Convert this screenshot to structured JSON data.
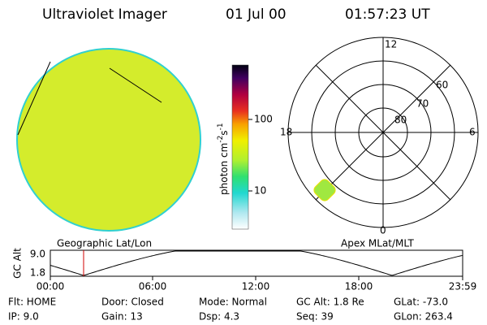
{
  "header": {
    "title": "Ultraviolet Imager",
    "date": "01 Jul 00",
    "time": "01:57:23 UT"
  },
  "colorbar": {
    "label": "photon cm",
    "exp1": "-2",
    "unit2": "s",
    "exp2": "-1",
    "ticks": [
      "100",
      "10"
    ]
  },
  "polar": {
    "lat_labels": [
      "80",
      "70",
      "60"
    ],
    "mlt_labels": {
      "top": "12",
      "left": "18",
      "right": "6",
      "bottom": "0"
    },
    "caption": "Apex MLat/MLT"
  },
  "timeline": {
    "y_label": "GC Alt",
    "y_ticks": [
      "9.0",
      "1.8"
    ],
    "caption": "Geographic Lat/Lon",
    "x_ticks": [
      "00:00",
      "06:00",
      "12:00",
      "18:00",
      "23:59"
    ]
  },
  "info": [
    [
      "Flt: HOME",
      "Door: Closed",
      "Mode: Normal",
      "GC Alt: 1.8 Re",
      "GLat: -73.0"
    ],
    [
      "IP:  9.0",
      "Gain: 13",
      "Dsp:    4.3",
      "Seq: 39",
      "GLon: 263.4"
    ]
  ]
}
